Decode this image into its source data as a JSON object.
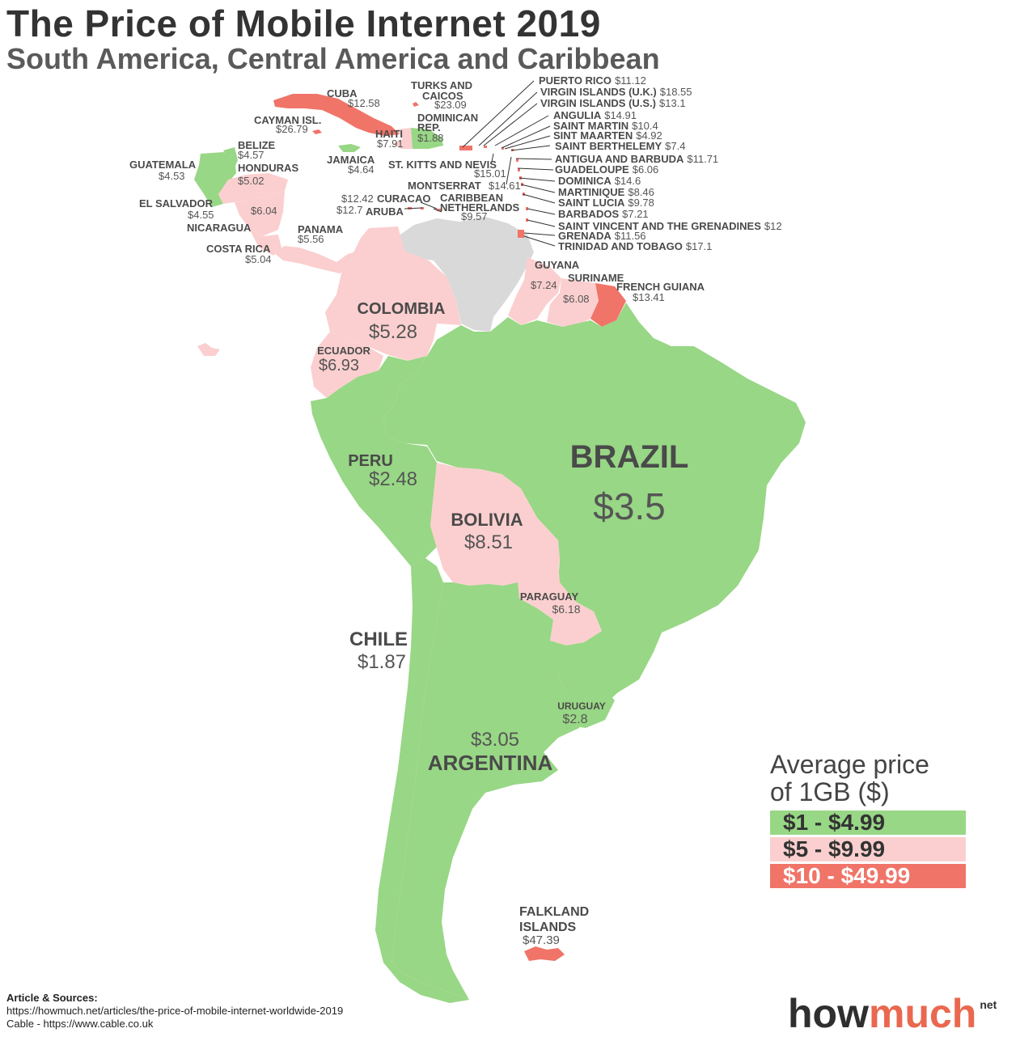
{
  "title": "The Price of Mobile Internet 2019",
  "subtitle": "South America, Central America and Caribbean",
  "colors": {
    "green": "#98d785",
    "pink": "#fbcfcf",
    "red": "#f07468",
    "gray": "#d9d9d9"
  },
  "countries": {
    "brazil": {
      "name": "BRAZIL",
      "price": "$3.5",
      "tier": "green"
    },
    "argentina": {
      "name": "ARGENTINA",
      "price": "$3.05",
      "tier": "green"
    },
    "chile": {
      "name": "CHILE",
      "price": "$1.87",
      "tier": "green"
    },
    "peru": {
      "name": "PERU",
      "price": "$2.48",
      "tier": "green"
    },
    "bolivia": {
      "name": "BOLIVIA",
      "price": "$8.51",
      "tier": "pink"
    },
    "colombia": {
      "name": "COLOMBIA",
      "price": "$5.28",
      "tier": "pink"
    },
    "ecuador": {
      "name": "ECUADOR",
      "price": "$6.93",
      "tier": "pink"
    },
    "paraguay": {
      "name": "PARAGUAY",
      "price": "$6.18",
      "tier": "pink"
    },
    "uruguay": {
      "name": "URUGUAY",
      "price": "$2.8",
      "tier": "green"
    },
    "guyana": {
      "name": "GUYANA",
      "price": "$7.24",
      "tier": "pink"
    },
    "suriname": {
      "name": "SURINAME",
      "price": "$6.08",
      "tier": "pink"
    },
    "french_guiana": {
      "name": "FRENCH GUIANA",
      "price": "$13.41",
      "tier": "red"
    },
    "falkland": {
      "name1": "FALKLAND",
      "name2": "ISLANDS",
      "price": "$47.39",
      "tier": "red"
    },
    "guatemala": {
      "name": "GUATEMALA",
      "price": "$4.53",
      "tier": "green"
    },
    "belize": {
      "name": "BELIZE",
      "price": "$4.57",
      "tier": "green"
    },
    "honduras": {
      "name": "HONDURAS",
      "price": "$5.02",
      "tier": "pink"
    },
    "el_salvador": {
      "name": "EL SALVADOR",
      "price": "$4.55",
      "tier": "green"
    },
    "nicaragua": {
      "name": "NICARAGUA",
      "price": "$6.04",
      "tier": "pink"
    },
    "costa_rica": {
      "name": "COSTA RICA",
      "price": "$5.04",
      "tier": "pink"
    },
    "panama": {
      "name": "PANAMA",
      "price": "$5.56",
      "tier": "pink"
    },
    "cuba": {
      "name": "CUBA",
      "price": "$12.58",
      "tier": "red"
    },
    "cayman": {
      "name": "CAYMAN ISL.",
      "price": "$26.79",
      "tier": "red"
    },
    "jamaica": {
      "name": "JAMAICA",
      "price": "$4.64",
      "tier": "green"
    },
    "haiti": {
      "name": "HAITI",
      "price": "$7.91",
      "tier": "pink"
    },
    "dominican": {
      "name1": "DOMINICAN",
      "name2": "REP.",
      "price": "$1.88",
      "tier": "green"
    },
    "turks": {
      "name1": "TURKS AND",
      "name2": "CAICOS",
      "price": "$23.09",
      "tier": "red"
    },
    "st_kitts": {
      "name": "ST. KITTS AND NEVIS",
      "price": "$15.01",
      "tier": "red"
    },
    "montserrat": {
      "name": "MONTSERRAT",
      "price": "$14.61",
      "tier": "red"
    },
    "curacao": {
      "name": "CURACAO",
      "price": "$12.42",
      "tier": "red"
    },
    "aruba": {
      "name": "ARUBA",
      "price": "$12.7",
      "tier": "red"
    },
    "caribbean_nl": {
      "name1": "CARIBBEAN",
      "name2": "NETHERLANDS",
      "price": "$9.57",
      "tier": "pink"
    }
  },
  "caribbean_list": [
    {
      "name": "PUERTO RICO",
      "price": "$11.12"
    },
    {
      "name": "VIRGIN ISLANDS (U.K.)",
      "price": "$18.55"
    },
    {
      "name": "VIRGIN ISLANDS (U.S.)",
      "price": "$13.1"
    },
    {
      "name": "ANGULIA",
      "price": "$14.91"
    },
    {
      "name": "SAINT MARTIN",
      "price": "$10.4"
    },
    {
      "name": "SINT MAARTEN",
      "price": "$4.92"
    },
    {
      "name": "SAINT BERTHELEMY",
      "price": "$7.4"
    },
    {
      "name": "ANTIGUA AND BARBUDA",
      "price": "$11.71"
    },
    {
      "name": "GUADELOUPE",
      "price": "$6.06"
    },
    {
      "name": "DOMINICA",
      "price": "$14.6"
    },
    {
      "name": "MARTINIQUE",
      "price": "$8.46"
    },
    {
      "name": "SAINT LUCIA",
      "price": "$9.78"
    },
    {
      "name": "BARBADOS",
      "price": "$7.21"
    },
    {
      "name": "SAINT VINCENT AND THE GRENADINES",
      "price": "$12"
    },
    {
      "name": "GRENADA",
      "price": "$11.56"
    },
    {
      "name": "TRINIDAD AND TOBAGO",
      "price": "$17.1"
    }
  ],
  "legend": {
    "title_line1": "Average price",
    "title_line2": "of 1GB ($)",
    "items": [
      {
        "label": "$1 - $4.99",
        "color": "#98d785",
        "text_color": "#333333"
      },
      {
        "label": "$5 - $9.99",
        "color": "#fbcfcf",
        "text_color": "#333333"
      },
      {
        "label": "$10 - $49.99",
        "color": "#f07468",
        "text_color": "#ffffff"
      }
    ]
  },
  "sources": {
    "heading": "Article & Sources:",
    "line1": "https://howmuch.net/articles/the-price-of-mobile-internet-worldwide-2019",
    "line2": "Cable - https://www.cable.co.uk"
  },
  "brand": {
    "part1": "how",
    "part2": "much",
    "suffix": "net"
  }
}
